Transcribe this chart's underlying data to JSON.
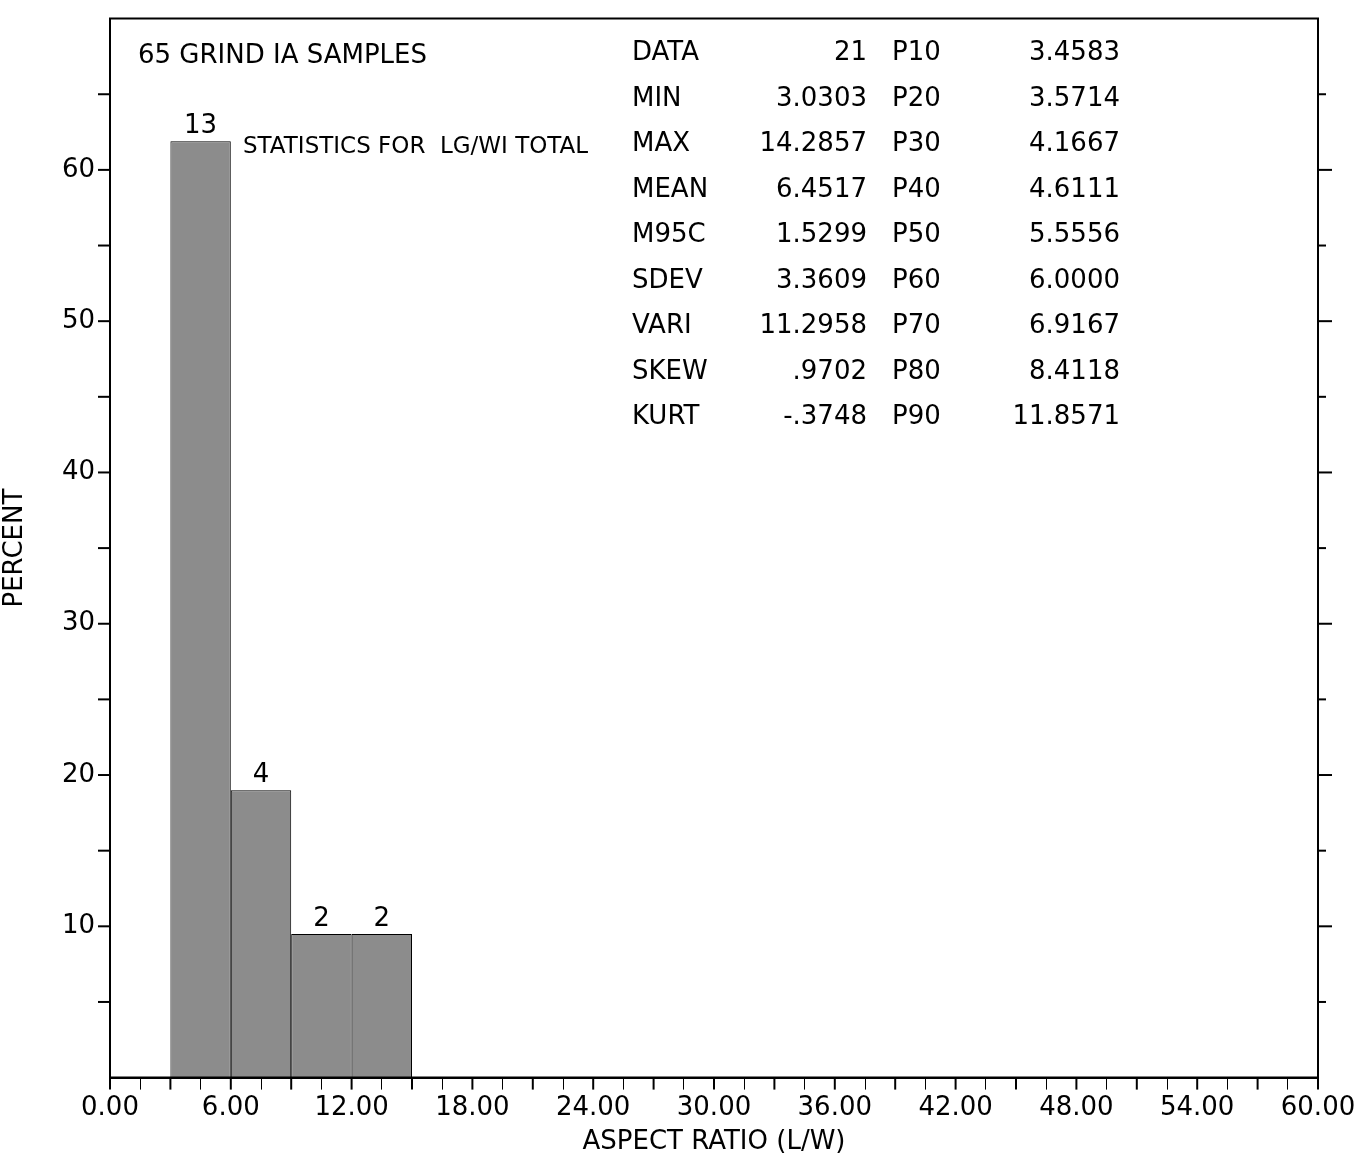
{
  "chart_data": {
    "type": "histogram",
    "title": "65 GRIND IA SAMPLES",
    "subtitle": "STATISTICS FOR  LG/WI TOTAL",
    "xlabel": "ASPECT RATIO (L/W)",
    "ylabel": "PERCENT",
    "bins": [
      3,
      6,
      9,
      12,
      15
    ],
    "values": [
      61.9,
      19.0,
      9.5,
      9.5
    ],
    "color": "#8c8c8c",
    "xlim": [
      0,
      60
    ],
    "xticks": [
      {
        "value": 0,
        "label": "0.00"
      },
      {
        "value": 3,
        "label": null
      },
      {
        "value": 6,
        "label": "6.00"
      },
      {
        "value": 9,
        "label": null
      },
      {
        "value": 12,
        "label": "12.00"
      },
      {
        "value": 15,
        "label": null
      },
      {
        "value": 18,
        "label": "18.00"
      },
      {
        "value": 21,
        "label": null
      },
      {
        "value": 24,
        "label": "24.00"
      },
      {
        "value": 27,
        "label": null
      },
      {
        "value": 30,
        "label": "30.00"
      },
      {
        "value": 33,
        "label": null
      },
      {
        "value": 36,
        "label": "36.00"
      },
      {
        "value": 39,
        "label": null
      },
      {
        "value": 42,
        "label": "42.00"
      },
      {
        "value": 45,
        "label": null
      },
      {
        "value": 48,
        "label": "48.00"
      },
      {
        "value": 51,
        "label": null
      },
      {
        "value": 54,
        "label": "54.00"
      },
      {
        "value": 57,
        "label": null
      },
      {
        "value": 60,
        "label": "60.00"
      }
    ],
    "ylim": [
      0,
      70
    ],
    "yticks": [
      {
        "value": 5,
        "label": null
      },
      10,
      {
        "value": 15,
        "label": null
      },
      20,
      {
        "value": 25,
        "label": null
      },
      30,
      {
        "value": 35,
        "label": null
      },
      40,
      {
        "value": 45,
        "label": null
      },
      50,
      {
        "value": 55,
        "label": null
      },
      60,
      {
        "value": 65,
        "label": null
      }
    ],
    "grid": false,
    "legend": false,
    "annotations": [
      "DATA 21",
      "MIN 3.0303",
      "MAX 14.2857",
      "MEAN 6.4517",
      "M95C 1.5299",
      "SDEV 3.3609",
      "VARI 11.2958",
      "SKEW .9702",
      "KURT -.3748",
      {
        "text": "13",
        "x": 4.5,
        "y": 61.9
      },
      {
        "text": "4",
        "x": 7.5,
        "y": 19.0
      },
      {
        "text": "2",
        "x": 10.5,
        "y": 9.5
      },
      {
        "text": "2",
        "x": 13.5,
        "y": 9.5
      },
      "P10 3.4583",
      "P20 3.5714",
      "P30 4.1667",
      "P40 4.6111",
      "P50 5.5556",
      "P60 6.0000",
      "P70 6.9167",
      "P80 8.4118",
      "P90 11.8571"
    ]
  }
}
